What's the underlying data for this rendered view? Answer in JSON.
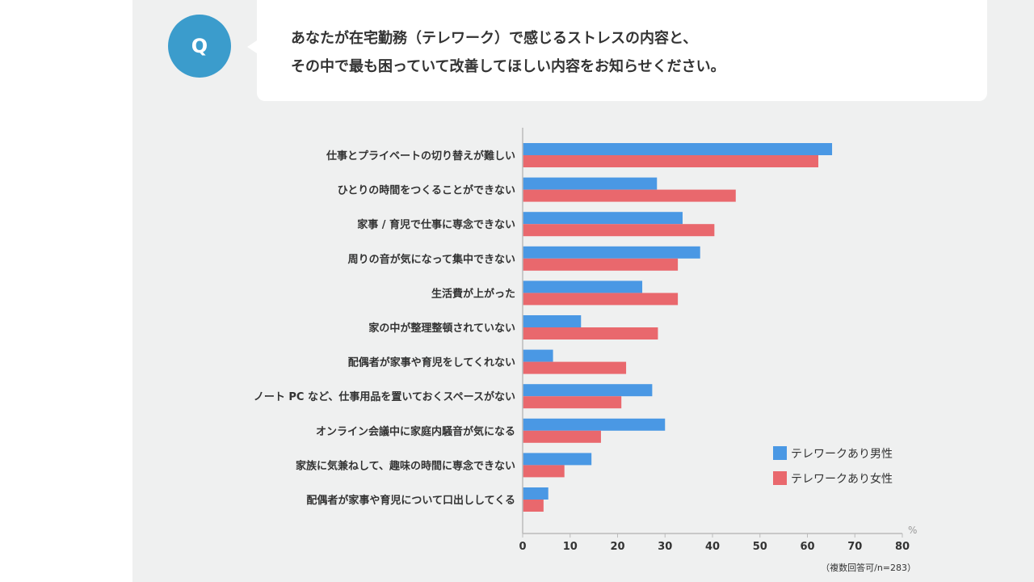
{
  "header": {
    "badge": "Q",
    "question_line1": "あなたが在宅勤務（テレワーク）で感じるストレスの内容と、",
    "question_line2": "その中で最も困っていて改善してほしい内容をお知らせください。"
  },
  "colors": {
    "badge": "#3b9ccc",
    "male": "#4a98e4",
    "female": "#e9686d",
    "panel_bg": "#eff0f0"
  },
  "chart_data": {
    "type": "bar",
    "orientation": "horizontal",
    "categories": [
      "仕事とプライベートの切り替えが難しい",
      "ひとりの時間をつくることができない",
      "家事 / 育児で仕事に専念できない",
      "周りの音が気になって集中できない",
      "生活費が上がった",
      "家の中が整理整頓されていない",
      "配偶者が家事や育児をしてくれない",
      "ノート PC など、仕事用品を置いておくスペースがない",
      "オンライン会議中に家庭内騒音が気になる",
      "家族に気兼ねして、趣味の時間に専念できない",
      "配偶者が家事や育児について口出ししてくる"
    ],
    "series": [
      {
        "name": "テレワークあり男性",
        "color": "#4a98e4",
        "values": [
          65.2,
          28.3,
          33.7,
          37.4,
          25.2,
          12.3,
          6.4,
          27.3,
          30.0,
          14.5,
          5.4
        ]
      },
      {
        "name": "テレワークあり女性",
        "color": "#e9686d",
        "values": [
          62.3,
          44.9,
          40.4,
          32.7,
          32.7,
          28.5,
          21.8,
          20.8,
          16.5,
          8.8,
          4.4
        ]
      }
    ],
    "xlim": [
      0,
      80
    ],
    "xticks": [
      "0",
      "10",
      "20",
      "30",
      "40",
      "50",
      "60",
      "70",
      "80"
    ],
    "unit": "%",
    "note": "（複数回答可/n=283）",
    "legend_position": "bottom-right",
    "grid": false
  }
}
